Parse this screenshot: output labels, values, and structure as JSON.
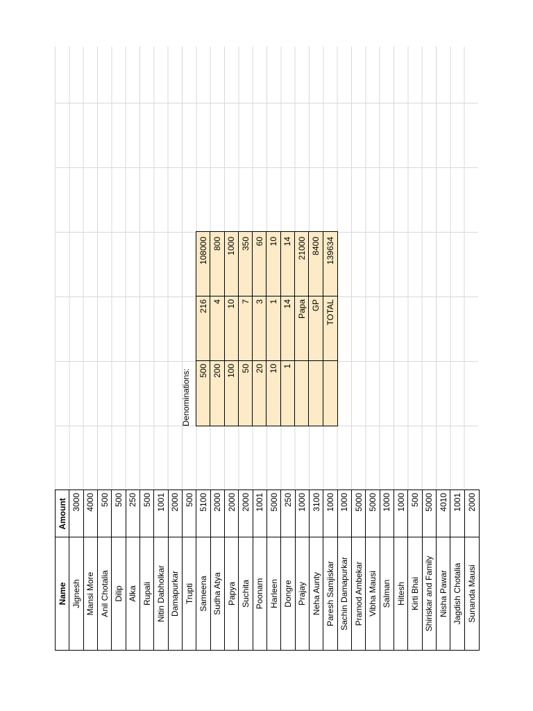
{
  "names_table": {
    "headers": {
      "name": "Name",
      "amount": "Amount"
    },
    "rows": [
      {
        "name": "Jignesh",
        "amount": "3000"
      },
      {
        "name": "Mansi More",
        "amount": "4000"
      },
      {
        "name": "Anil Chotalia",
        "amount": "500"
      },
      {
        "name": "Dilip",
        "amount": "500"
      },
      {
        "name": "Alka",
        "amount": "250"
      },
      {
        "name": "Rupali",
        "amount": "500"
      },
      {
        "name": "Nitin Dabholkar",
        "amount": "1001"
      },
      {
        "name": "Damapurkar",
        "amount": "2000"
      },
      {
        "name": "Trupti",
        "amount": "500"
      },
      {
        "name": "Sameena",
        "amount": "5100"
      },
      {
        "name": "Sudha Atya",
        "amount": "2000"
      },
      {
        "name": "Papya",
        "amount": "2000"
      },
      {
        "name": "Suchita",
        "amount": "2000"
      },
      {
        "name": "Poonam",
        "amount": "1001"
      },
      {
        "name": "Harleen",
        "amount": "5000"
      },
      {
        "name": "Dongre",
        "amount": "250"
      },
      {
        "name": "Prajay",
        "amount": "1000"
      },
      {
        "name": "Neha Aunty",
        "amount": "3100"
      },
      {
        "name": "Paresh Samjiskar",
        "amount": "1000"
      },
      {
        "name": "Sachin Damapurkar",
        "amount": "1000"
      },
      {
        "name": "Pramod Ambekar",
        "amount": "5000"
      },
      {
        "name": "Vibha Mausi",
        "amount": "5000"
      },
      {
        "name": "Salman",
        "amount": "1000"
      },
      {
        "name": "Hitesh",
        "amount": "1000"
      },
      {
        "name": "Kirti Bhai",
        "amount": "500"
      },
      {
        "name": "Shiriskar and Family",
        "amount": "5000"
      },
      {
        "name": "Nisha Pawar",
        "amount": "4010"
      },
      {
        "name": "Jagdish Chotalia",
        "amount": "1001"
      },
      {
        "name": "Sunanda Mausi",
        "amount": "2000"
      }
    ]
  },
  "denominations": {
    "title": "Denominations:",
    "rows": [
      {
        "note": "500",
        "count": "216",
        "total": "108000"
      },
      {
        "note": "200",
        "count": "4",
        "total": "800"
      },
      {
        "note": "100",
        "count": "10",
        "total": "1000"
      },
      {
        "note": "50",
        "count": "7",
        "total": "350"
      },
      {
        "note": "20",
        "count": "3",
        "total": "60"
      },
      {
        "note": "10",
        "count": "1",
        "total": "10"
      },
      {
        "note": "1",
        "count": "14",
        "total": "14"
      },
      {
        "note": "",
        "count": "Papa",
        "total": "21000"
      },
      {
        "note": "",
        "count": "GP",
        "total": "8400"
      },
      {
        "note": "",
        "count": "TOTAL",
        "total": "139634"
      }
    ]
  }
}
